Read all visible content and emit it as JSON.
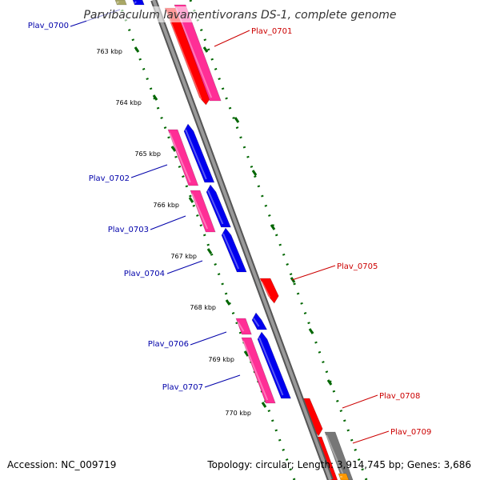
{
  "title": "Parvibaculum lavamentivorans DS-1, complete genome",
  "accession": "Accession: NC_009719",
  "summary": "Topology: circular; Length: 3,914,745 bp; Genes: 3,686",
  "colors": {
    "forward_label": "#0000aa",
    "reverse_label": "#cc0000",
    "tick": "#006600",
    "backbone": "#888888",
    "red": "#ff0000",
    "pink": "#ff2e96",
    "blue": "#0000ee",
    "gray": "#777777",
    "orange": "#ff9900",
    "olive": "#aaa866"
  },
  "ticks": [
    "763 kbp",
    "764 kbp",
    "765 kbp",
    "766 kbp",
    "767 kbp",
    "768 kbp",
    "769 kbp",
    "770 kbp"
  ],
  "gene_labels": [
    {
      "name": "Plav_0700",
      "strand": "forward"
    },
    {
      "name": "Plav_0701",
      "strand": "reverse"
    },
    {
      "name": "Plav_0702",
      "strand": "forward"
    },
    {
      "name": "Plav_0703",
      "strand": "forward"
    },
    {
      "name": "Plav_0704",
      "strand": "forward"
    },
    {
      "name": "Plav_0705",
      "strand": "reverse"
    },
    {
      "name": "Plav_0706",
      "strand": "forward"
    },
    {
      "name": "Plav_0707",
      "strand": "forward"
    },
    {
      "name": "Plav_0708",
      "strand": "reverse"
    },
    {
      "name": "Plav_0709",
      "strand": "reverse"
    }
  ]
}
